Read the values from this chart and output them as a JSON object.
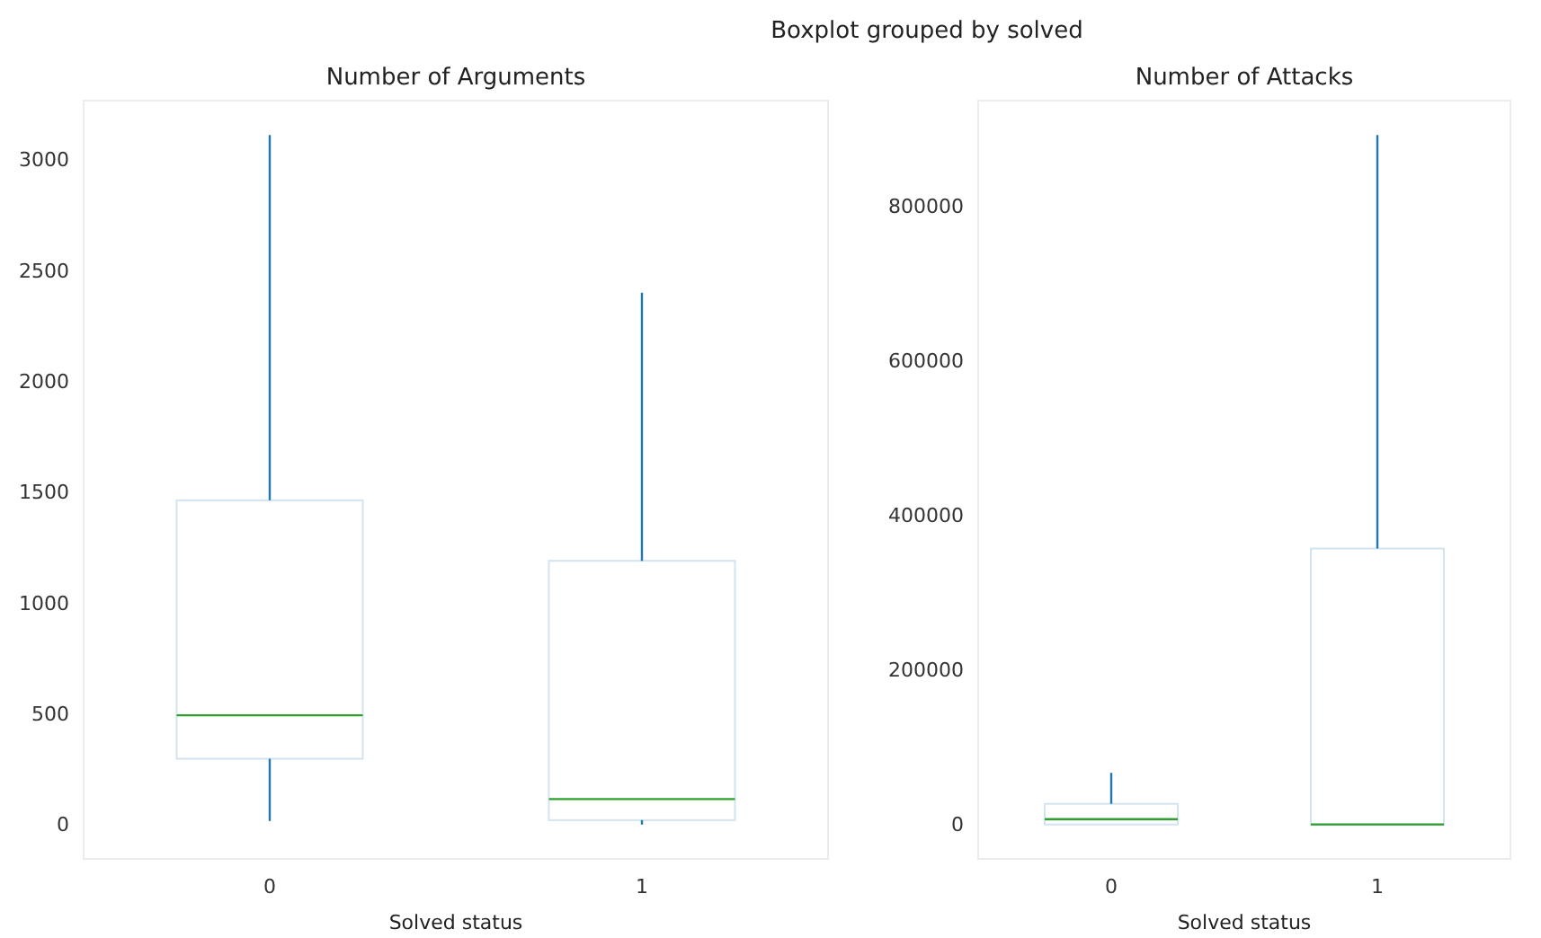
{
  "chart_data": [
    {
      "type": "box",
      "title": "Number of Arguments",
      "xlabel": "Solved status",
      "annotations": [
        "Boxplot grouped by solved"
      ],
      "categories": [
        "0",
        "1"
      ],
      "color": "#1f77b4",
      "boxes": [
        {
          "low": 16,
          "q1": 297,
          "median": 493,
          "q3": 1463,
          "high": 3111
        },
        {
          "low": 0,
          "q1": 20,
          "median": 115,
          "q3": 1190,
          "high": 2400
        }
      ],
      "ylim": [
        -155,
        3266
      ],
      "yticks": [
        0,
        500,
        1000,
        1500,
        2000,
        2500,
        3000
      ],
      "grid": false
    },
    {
      "type": "box",
      "title": "Number of Attacks",
      "xlabel": "Solved status",
      "categories": [
        "0",
        "1"
      ],
      "color": "#1f77b4",
      "boxes": [
        {
          "low": 0,
          "q1": 0,
          "median": 6900,
          "q3": 26700,
          "high": 66800
        },
        {
          "low": 0,
          "q1": 0,
          "median": 0,
          "q3": 357000,
          "high": 892000
        }
      ],
      "ylim": [
        -44600,
        936600
      ],
      "yticks": [
        0,
        200000,
        400000,
        600000,
        800000
      ],
      "grid": false
    }
  ]
}
